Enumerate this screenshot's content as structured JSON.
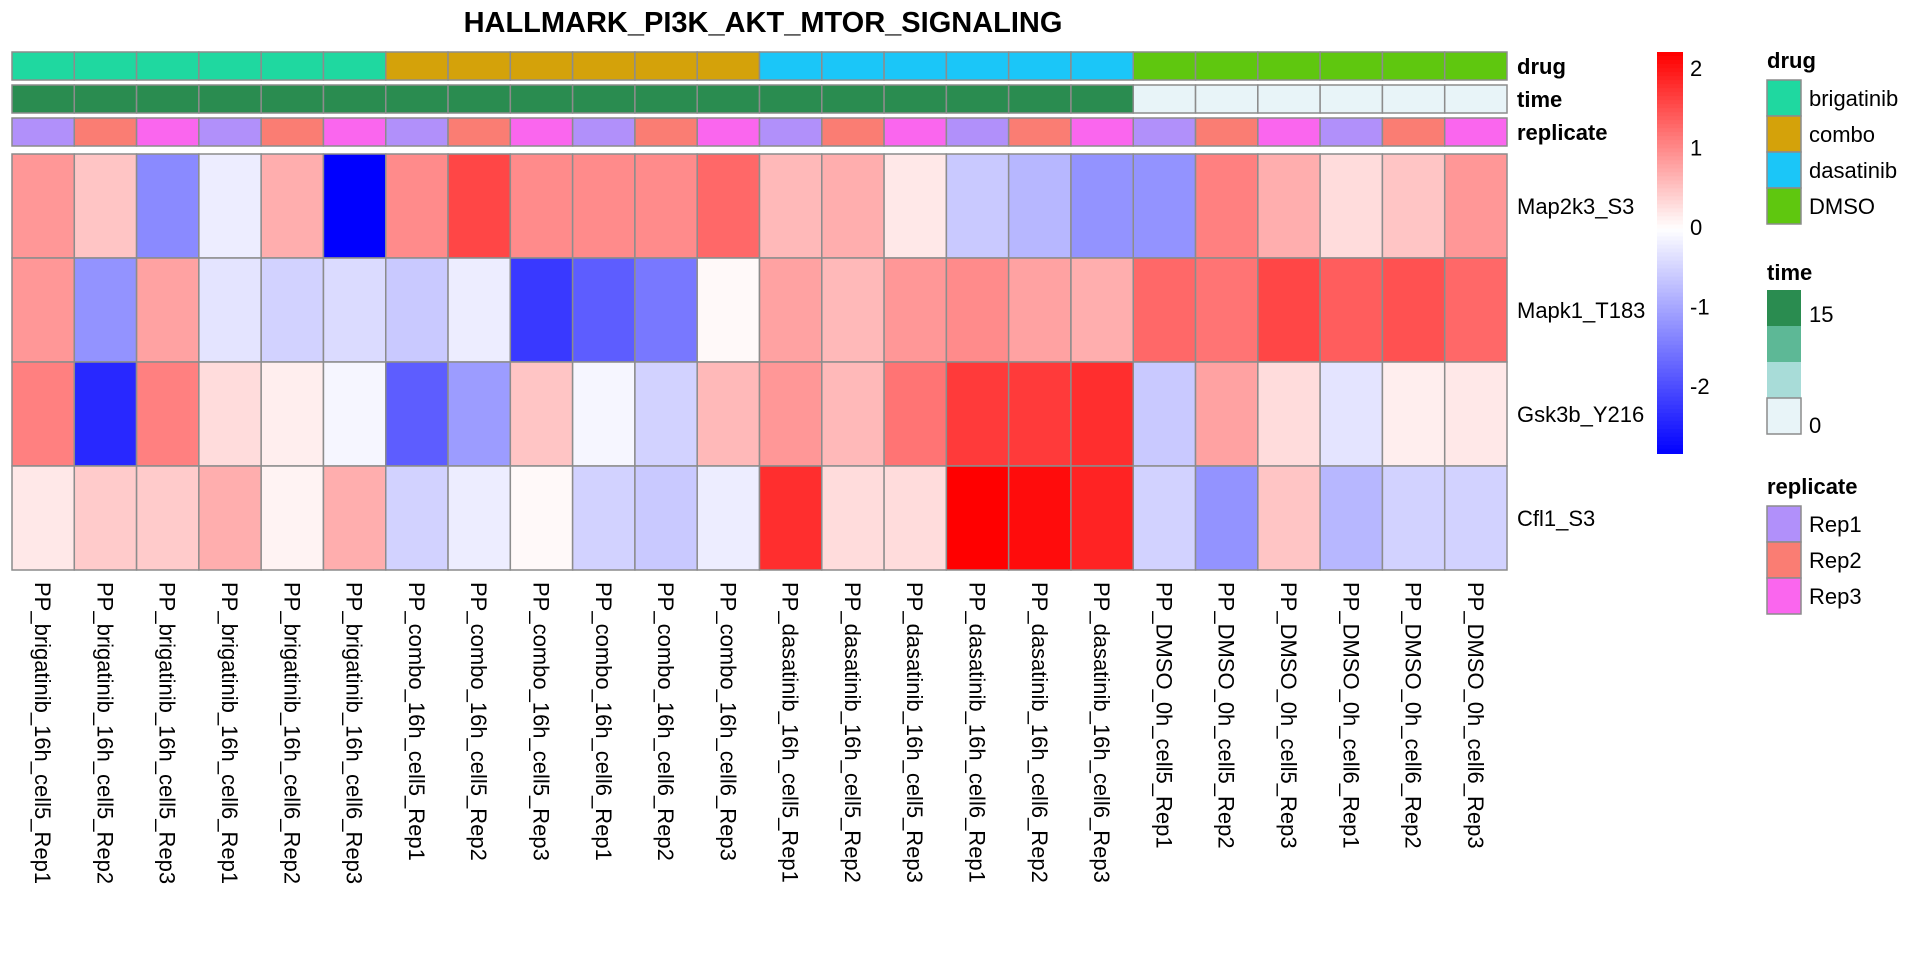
{
  "chart_data": {
    "type": "heatmap",
    "title": "HALLMARK_PI3K_AKT_MTOR_SIGNALING",
    "rows": [
      "Map2k3_S3",
      "Mapk1_T183",
      "Gsk3b_Y216",
      "Cfl1_S3"
    ],
    "columns": [
      "PP_brigatinib_16h_cell5_Rep1",
      "PP_brigatinib_16h_cell5_Rep2",
      "PP_brigatinib_16h_cell5_Rep3",
      "PP_brigatinib_16h_cell6_Rep1",
      "PP_brigatinib_16h_cell6_Rep2",
      "PP_brigatinib_16h_cell6_Rep3",
      "PP_combo_16h_cell5_Rep1",
      "PP_combo_16h_cell5_Rep2",
      "PP_combo_16h_cell5_Rep3",
      "PP_combo_16h_cell6_Rep1",
      "PP_combo_16h_cell6_Rep2",
      "PP_combo_16h_cell6_Rep3",
      "PP_dasatinib_16h_cell5_Rep1",
      "PP_dasatinib_16h_cell5_Rep2",
      "PP_dasatinib_16h_cell5_Rep3",
      "PP_dasatinib_16h_cell6_Rep1",
      "PP_dasatinib_16h_cell6_Rep2",
      "PP_dasatinib_16h_cell6_Rep3",
      "PP_DMSO_0h_cell5_Rep1",
      "PP_DMSO_0h_cell5_Rep2",
      "PP_DMSO_0h_cell5_Rep3",
      "PP_DMSO_0h_cell6_Rep1",
      "PP_DMSO_0h_cell6_Rep2",
      "PP_DMSO_0h_cell6_Rep3"
    ],
    "values": [
      [
        0.9,
        0.5,
        -1.3,
        -0.2,
        0.7,
        -2.84,
        1.0,
        1.6,
        1.0,
        1.0,
        1.0,
        1.3,
        0.6,
        0.7,
        0.2,
        -0.6,
        -0.8,
        -1.2,
        -1.2,
        1.1,
        0.7,
        0.3,
        0.5,
        0.9
      ],
      [
        0.9,
        -1.2,
        0.8,
        -0.3,
        -0.5,
        -0.4,
        -0.6,
        -0.2,
        -2.2,
        -1.8,
        -1.5,
        0.05,
        0.8,
        0.6,
        0.9,
        1.0,
        0.8,
        0.7,
        1.3,
        1.2,
        1.6,
        1.4,
        1.5,
        1.3
      ],
      [
        1.1,
        -2.4,
        1.1,
        0.3,
        0.15,
        -0.1,
        -1.8,
        -1.1,
        0.5,
        -0.1,
        -0.5,
        0.6,
        0.9,
        0.6,
        1.2,
        1.7,
        1.7,
        1.8,
        -0.6,
        0.8,
        0.3,
        -0.3,
        0.15,
        0.2
      ],
      [
        0.2,
        0.45,
        0.45,
        0.7,
        0.1,
        0.7,
        -0.5,
        -0.2,
        0.05,
        -0.5,
        -0.6,
        -0.2,
        1.8,
        0.3,
        0.3,
        2.2,
        2.1,
        1.9,
        -0.5,
        -1.2,
        0.5,
        -0.8,
        -0.5,
        -0.5
      ]
    ],
    "color_range": [
      -2.84,
      2.2
    ],
    "colorbar_ticks": [
      2,
      1,
      0,
      -1,
      -2
    ],
    "colors": {
      "low": "#0000ff",
      "mid": "#ffffff",
      "high": "#ff0000"
    },
    "annotations": {
      "drug": {
        "label": "drug",
        "values": [
          "brigatinib",
          "brigatinib",
          "brigatinib",
          "brigatinib",
          "brigatinib",
          "brigatinib",
          "combo",
          "combo",
          "combo",
          "combo",
          "combo",
          "combo",
          "dasatinib",
          "dasatinib",
          "dasatinib",
          "dasatinib",
          "dasatinib",
          "dasatinib",
          "DMSO",
          "DMSO",
          "DMSO",
          "DMSO",
          "DMSO",
          "DMSO"
        ],
        "legend": [
          {
            "name": "brigatinib",
            "color": "#1fd8a0"
          },
          {
            "name": "combo",
            "color": "#d4a20a"
          },
          {
            "name": "dasatinib",
            "color": "#1bc6f8"
          },
          {
            "name": "DMSO",
            "color": "#5fc70f"
          }
        ]
      },
      "time": {
        "label": "time",
        "values": [
          16,
          16,
          16,
          16,
          16,
          16,
          16,
          16,
          16,
          16,
          16,
          16,
          16,
          16,
          16,
          16,
          16,
          16,
          0,
          0,
          0,
          0,
          0,
          0
        ],
        "legend_ticks": [
          "15",
          "0"
        ],
        "legend_colors": [
          "#2a8c50",
          "#5db896",
          "#a8dcd8",
          "#e8f4f8"
        ]
      },
      "replicate": {
        "label": "replicate",
        "values": [
          "Rep1",
          "Rep2",
          "Rep3",
          "Rep1",
          "Rep2",
          "Rep3",
          "Rep1",
          "Rep2",
          "Rep3",
          "Rep1",
          "Rep2",
          "Rep3",
          "Rep1",
          "Rep2",
          "Rep3",
          "Rep1",
          "Rep2",
          "Rep3",
          "Rep1",
          "Rep2",
          "Rep3",
          "Rep1",
          "Rep2",
          "Rep3"
        ],
        "legend": [
          {
            "name": "Rep1",
            "color": "#b190fa"
          },
          {
            "name": "Rep2",
            "color": "#fa7d73"
          },
          {
            "name": "Rep3",
            "color": "#fa66ee"
          }
        ]
      }
    }
  }
}
